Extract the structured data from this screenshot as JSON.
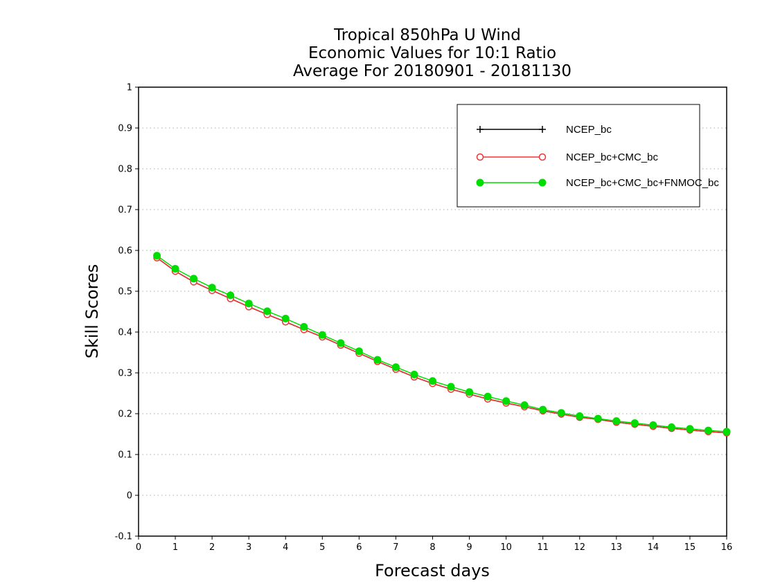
{
  "chart_data": {
    "type": "line",
    "title_lines": [
      "Tropical 850hPa U Wind",
      "Economic Values for 10:1 Ratio",
      "Average For 20180901 - 20181130"
    ],
    "xlabel": "Forecast days",
    "ylabel": "Skill Scores",
    "xlim": [
      0,
      16
    ],
    "ylim": [
      -0.1,
      1
    ],
    "xticks": [
      0,
      1,
      2,
      3,
      4,
      5,
      6,
      7,
      8,
      9,
      10,
      11,
      12,
      13,
      14,
      15,
      16
    ],
    "yticks": [
      -0.1,
      0,
      0.1,
      0.2,
      0.3,
      0.4,
      0.5,
      0.6,
      0.7,
      0.8,
      0.9,
      1
    ],
    "ytick_labels": [
      "-0.1",
      "0",
      "0.1",
      "0.2",
      "0.3",
      "0.4",
      "0.5",
      "0.6",
      "0.7",
      "0.8",
      "0.9",
      "1"
    ],
    "grid": "horizontal dotted",
    "legend_position": "top-right",
    "x": [
      0.5,
      1,
      1.5,
      2,
      2.5,
      3,
      3.5,
      4,
      4.5,
      5,
      5.5,
      6,
      6.5,
      7,
      7.5,
      8,
      8.5,
      9,
      9.5,
      10,
      10.5,
      11,
      11.5,
      12,
      12.5,
      13,
      13.5,
      14,
      14.5,
      15,
      15.5,
      16
    ],
    "series": [
      {
        "name": "NCEP_bc",
        "color": "#000000",
        "marker": "plus",
        "values": [
          0.582,
          0.549,
          0.523,
          0.502,
          0.482,
          0.462,
          0.443,
          0.425,
          0.406,
          0.388,
          0.368,
          0.348,
          0.328,
          0.309,
          0.29,
          0.274,
          0.26,
          0.248,
          0.236,
          0.226,
          0.217,
          0.207,
          0.199,
          0.191,
          0.186,
          0.179,
          0.174,
          0.169,
          0.164,
          0.16,
          0.156,
          0.153
        ]
      },
      {
        "name": "NCEP_bc+CMC_bc",
        "color": "#ee3333",
        "marker": "open-circle",
        "values": [
          0.582,
          0.549,
          0.523,
          0.502,
          0.482,
          0.462,
          0.443,
          0.425,
          0.406,
          0.388,
          0.368,
          0.348,
          0.328,
          0.309,
          0.29,
          0.274,
          0.26,
          0.248,
          0.236,
          0.226,
          0.217,
          0.207,
          0.199,
          0.191,
          0.186,
          0.179,
          0.174,
          0.169,
          0.164,
          0.16,
          0.156,
          0.153
        ]
      },
      {
        "name": "NCEP_bc+CMC_bc+FNMOC_bc",
        "color": "#00dd00",
        "marker": "filled-circle",
        "values": [
          0.587,
          0.555,
          0.531,
          0.509,
          0.49,
          0.47,
          0.451,
          0.433,
          0.413,
          0.393,
          0.373,
          0.353,
          0.332,
          0.314,
          0.296,
          0.28,
          0.266,
          0.253,
          0.242,
          0.231,
          0.221,
          0.21,
          0.202,
          0.194,
          0.188,
          0.182,
          0.177,
          0.172,
          0.167,
          0.163,
          0.159,
          0.156
        ]
      }
    ]
  }
}
